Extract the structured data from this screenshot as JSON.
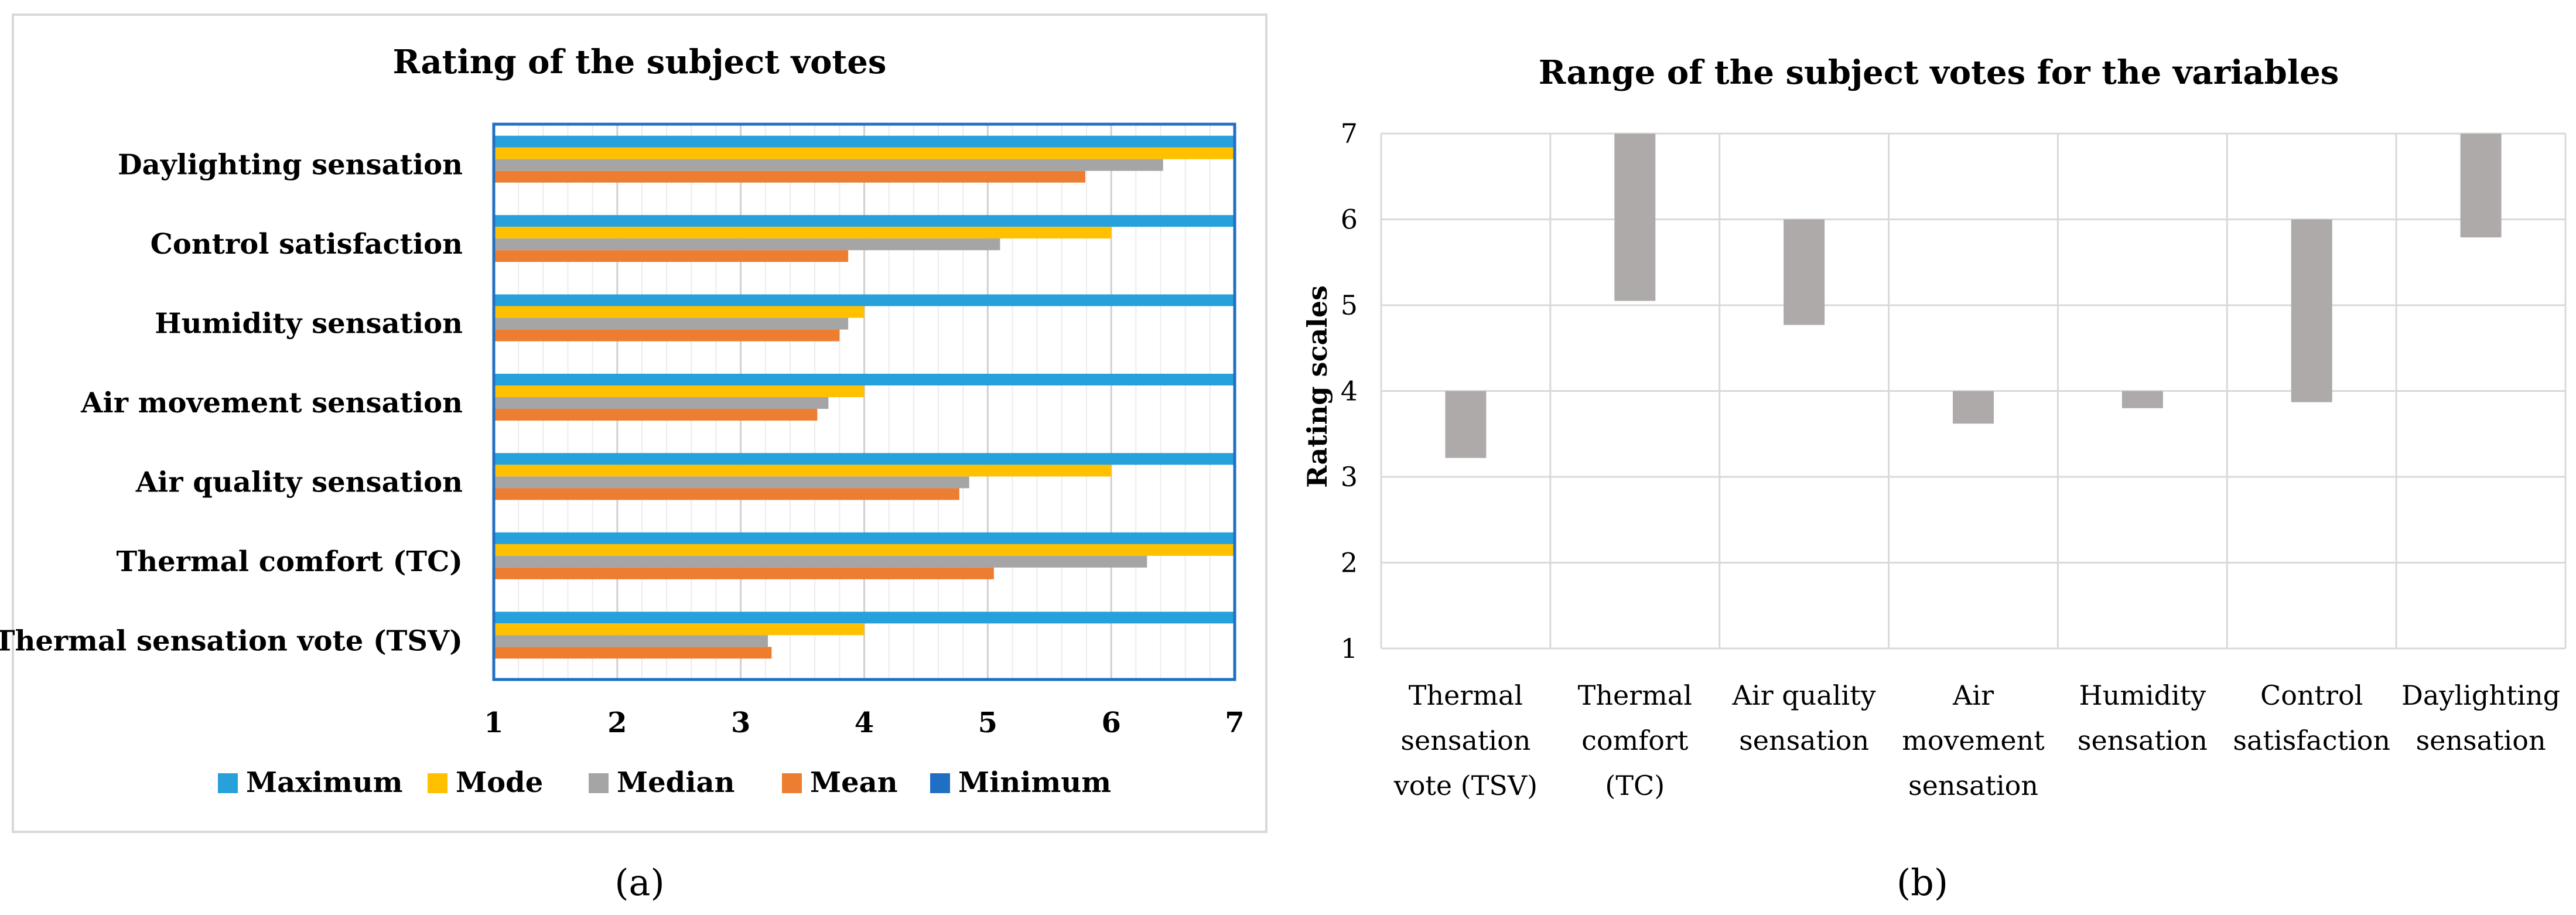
{
  "panel_labels": [
    "(a)",
    "(b)"
  ],
  "chart_data": [
    {
      "type": "bar",
      "orientation": "horizontal",
      "title": "Rating of the subject votes",
      "categories": [
        "Thermal sensation vote (TSV)",
        "Thermal comfort (TC)",
        "Air quality sensation",
        "Air movement sensation",
        "Humidity sensation",
        "Control satisfaction",
        "Daylighting sensation"
      ],
      "series": [
        {
          "name": "Maximum",
          "color": "#26A1DB",
          "values": [
            7,
            7,
            7,
            7,
            7,
            7,
            7
          ]
        },
        {
          "name": "Mode",
          "color": "#FFC000",
          "values": [
            4,
            7,
            6,
            4,
            4,
            6,
            7
          ]
        },
        {
          "name": "Median",
          "color": "#A5A5A5",
          "values": [
            3.22,
            6.29,
            4.85,
            3.71,
            3.87,
            5.1,
            6.42
          ]
        },
        {
          "name": "Mean",
          "color": "#ED7D31",
          "values": [
            3.25,
            5.05,
            4.77,
            3.62,
            3.8,
            3.87,
            5.79
          ]
        },
        {
          "name": "Minimum",
          "color": "#1F6FC5",
          "values": [
            1,
            1,
            1,
            1,
            1,
            1,
            1
          ]
        }
      ],
      "xlim": [
        1,
        7
      ],
      "xticks": [
        "1",
        "2",
        "3",
        "4",
        "5",
        "6",
        "7"
      ],
      "grid": true,
      "legend_position": "bottom"
    },
    {
      "type": "bar",
      "subtype": "floating-range",
      "title": "Range of the subject votes for the variables",
      "ylabel": "Rating scales",
      "ylim": [
        1,
        7
      ],
      "yticks": [
        "1",
        "2",
        "3",
        "4",
        "5",
        "6",
        "7"
      ],
      "categories": [
        [
          "Thermal",
          "sensation",
          "vote (TSV)"
        ],
        [
          "Thermal",
          "comfort",
          "(TC)"
        ],
        [
          "Air quality",
          "sensation"
        ],
        [
          "Air",
          "movement",
          "sensation"
        ],
        [
          "Humidity",
          "sensation"
        ],
        [
          "Control",
          "satisfaction"
        ],
        [
          "Daylighting",
          "sensation"
        ]
      ],
      "ranges": [
        {
          "low": 3.22,
          "high": 4
        },
        {
          "low": 5.05,
          "high": 7
        },
        {
          "low": 4.77,
          "high": 6
        },
        {
          "low": 3.62,
          "high": 4
        },
        {
          "low": 3.8,
          "high": 4
        },
        {
          "low": 3.87,
          "high": 6
        },
        {
          "low": 5.79,
          "high": 7
        }
      ],
      "bar_color": "#AEAAAA",
      "grid": true
    }
  ]
}
